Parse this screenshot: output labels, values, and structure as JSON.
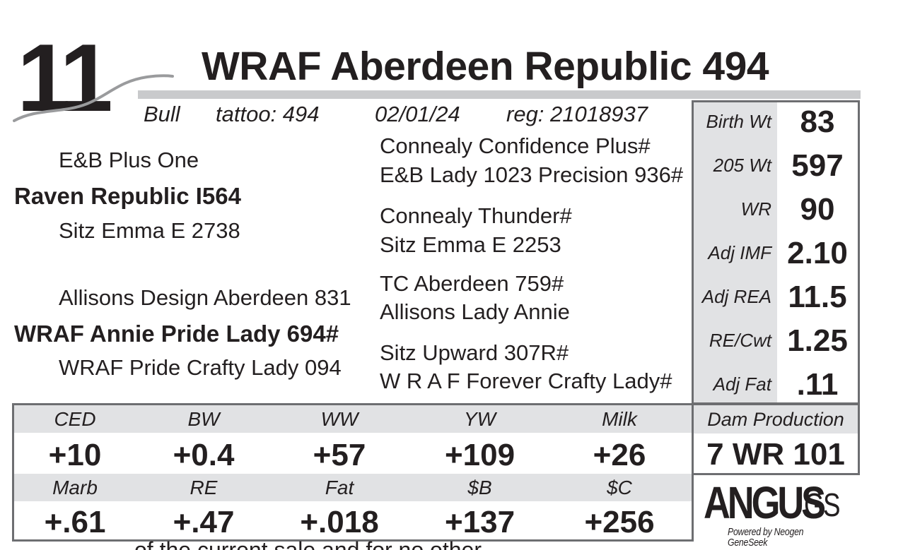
{
  "lot": {
    "number": "11"
  },
  "animal": {
    "name": "WRAF Aberdeen Republic 494",
    "sex": "Bull",
    "tattoo": "tattoo: 494",
    "birth_date": "02/01/24",
    "registration": "reg: 21018937"
  },
  "pedigree": {
    "sire": {
      "name": "Raven Republic I564",
      "sire": "E&B Plus One",
      "dam": "Sitz Emma E 2738",
      "sire_sire": "Connealy Confidence Plus#",
      "sire_dam": "E&B Lady 1023 Precision 936#",
      "dam_sire": "Connealy Thunder#",
      "dam_dam": "Sitz Emma E 2253"
    },
    "dam": {
      "name": "WRAF Annie Pride Lady 694#",
      "sire": "Allisons Design Aberdeen 831",
      "dam": "WRAF Pride Crafty Lady 094",
      "sire_sire": "TC Aberdeen 759#",
      "sire_dam": "Allisons Lady Annie",
      "dam_sire": "Sitz Upward 307R#",
      "dam_dam": "W R A F Forever Crafty Lady#"
    }
  },
  "performance": [
    {
      "label": "Birth Wt",
      "value": "83"
    },
    {
      "label": "205 Wt",
      "value": "597"
    },
    {
      "label": "WR",
      "value": "90"
    },
    {
      "label": "Adj IMF",
      "value": "2.10"
    },
    {
      "label": "Adj REA",
      "value": "11.5"
    },
    {
      "label": "RE/Cwt",
      "value": "1.25"
    },
    {
      "label": "Adj Fat",
      "value": ".11"
    }
  ],
  "epds": {
    "row1": [
      {
        "label": "CED",
        "value": "+10"
      },
      {
        "label": "BW",
        "value": "+0.4"
      },
      {
        "label": "WW",
        "value": "+57"
      },
      {
        "label": "YW",
        "value": "+109"
      },
      {
        "label": "Milk",
        "value": "+26"
      }
    ],
    "row2": [
      {
        "label": "Marb",
        "value": "+.61"
      },
      {
        "label": "RE",
        "value": "+.47"
      },
      {
        "label": "Fat",
        "value": "+.018"
      },
      {
        "label": "$B",
        "value": "+137"
      },
      {
        "label": "$C",
        "value": "+256"
      }
    ]
  },
  "dam_production": {
    "label": "Dam Production",
    "value": "7 WR 101"
  },
  "logo": {
    "main": "ANGUS",
    "suffix": "GS",
    "tagline": "Powered by Neogen GeneSeek"
  },
  "footer": {
    "text": "of the current sale and for no other"
  },
  "colors": {
    "ink": "#231f20",
    "band": "#e1e2e4",
    "border": "#6d6e71",
    "rule": "#c9cacc"
  }
}
